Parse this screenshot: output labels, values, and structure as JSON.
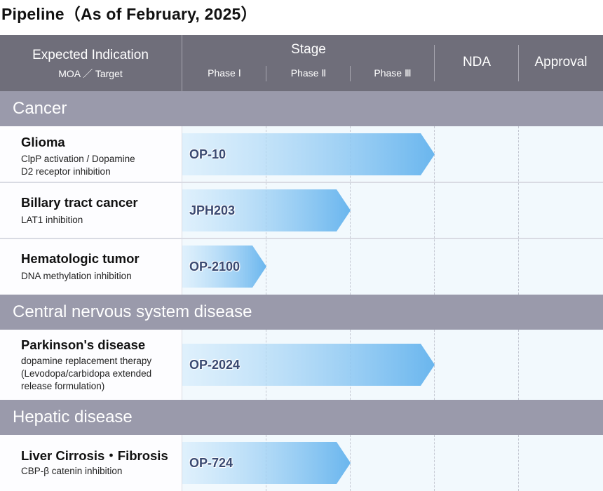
{
  "title": "Pipeline（As of February, 2025）",
  "header": {
    "indication": "Expected Indication",
    "moa": "MOA ／ Target",
    "stage": "Stage",
    "phase1": "Phase Ⅰ",
    "phase2": "Phase Ⅱ",
    "phase3": "Phase Ⅲ",
    "nda": "NDA",
    "approval": "Approval"
  },
  "categories": [
    "Cancer",
    "Central nervous system disease",
    "Hepatic disease"
  ],
  "rows": [
    {
      "name": "Glioma",
      "moa": [
        "ClpP activation / Dopamine",
        "D2 receptor inhibition"
      ],
      "compound": "OP-10",
      "stage_reached": "Phase Ⅲ"
    },
    {
      "name": "Billary tract cancer",
      "moa": [
        "LAT1 inhibition"
      ],
      "compound": "JPH203",
      "stage_reached": "Phase Ⅱ"
    },
    {
      "name": "Hematologic tumor",
      "moa": [
        "DNA methylation inhibition"
      ],
      "compound": "OP-2100",
      "stage_reached": "Phase Ⅰ"
    },
    {
      "name": "Parkinson's disease",
      "moa": [
        "dopamine replacement therapy",
        "(Levodopa/carbidopa extended",
        "release formulation)"
      ],
      "compound": "OP-2024",
      "stage_reached": "Phase Ⅲ"
    },
    {
      "name": "Liver Cirrosis・Fibrosis",
      "moa": [
        "CBP-β catenin inhibition"
      ],
      "compound": "OP-724",
      "stage_reached": "Phase Ⅱ"
    }
  ],
  "colors": {
    "header": "#6f6e7a",
    "category": "#9a9aab",
    "arrow_light": "#cfe9fb",
    "arrow_dark": "#6ab6ee",
    "label": "#3a4a72"
  }
}
